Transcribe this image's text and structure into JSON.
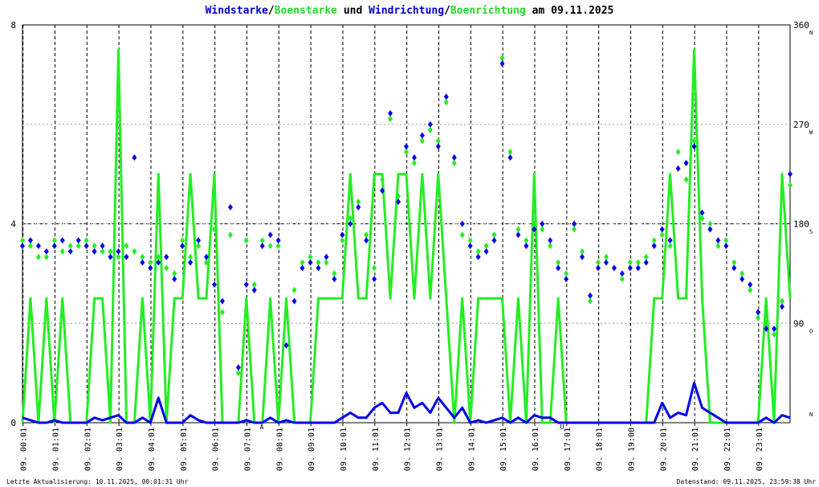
{
  "chart_data": {
    "type": "line",
    "title_parts": [
      {
        "text": "Windstarke",
        "color": "#0000cc"
      },
      {
        "text": "/",
        "color": "#000000"
      },
      {
        "text": "Boenstarke",
        "color": "#22dd22"
      },
      {
        "text": " und ",
        "color": "#000000"
      },
      {
        "text": "Windrichtung",
        "color": "#0000cc"
      },
      {
        "text": "/",
        "color": "#000000"
      },
      {
        "text": "Boenrichtung",
        "color": "#22dd22"
      },
      {
        "text": " am 09.11.2025",
        "color": "#000000"
      }
    ],
    "xlim": [
      0,
      1440
    ],
    "xticks": [
      {
        "value": 1,
        "label": "09. 00:01"
      },
      {
        "value": 61,
        "label": "09. 01:01"
      },
      {
        "value": 121,
        "label": "09. 02:01"
      },
      {
        "value": 181,
        "label": "09. 03:01"
      },
      {
        "value": 241,
        "label": "09. 04:01"
      },
      {
        "value": 301,
        "label": "09. 05:01"
      },
      {
        "value": 361,
        "label": "09. 06:01"
      },
      {
        "value": 421,
        "label": "09. 07:01"
      },
      {
        "value": 481,
        "label": "09. 08:01"
      },
      {
        "value": 541,
        "label": "09. 09:01"
      },
      {
        "value": 601,
        "label": "09. 10:01"
      },
      {
        "value": 661,
        "label": "09. 11:01"
      },
      {
        "value": 721,
        "label": "09. 12:01"
      },
      {
        "value": 781,
        "label": "09. 13:01"
      },
      {
        "value": 841,
        "label": "09. 14:01"
      },
      {
        "value": 901,
        "label": "09. 15:01"
      },
      {
        "value": 961,
        "label": "09. 16:01"
      },
      {
        "value": 1021,
        "label": "09. 17:01"
      },
      {
        "value": 1081,
        "label": "09. 18:01"
      },
      {
        "value": 1141,
        "label": "09. 19:00"
      },
      {
        "value": 1201,
        "label": "09. 20:01"
      },
      {
        "value": 1261,
        "label": "09. 21:01"
      },
      {
        "value": 1321,
        "label": "09. 22:01"
      },
      {
        "value": 1381,
        "label": "09. 23:01"
      }
    ],
    "ylim": [
      0,
      8
    ],
    "yticks": [
      0,
      4,
      8
    ],
    "y2lim": [
      0,
      360
    ],
    "y2ticks": [
      90,
      180,
      270,
      360
    ],
    "compass": [
      {
        "value": 360,
        "label": "N"
      },
      {
        "value": 270,
        "label": "W"
      },
      {
        "value": 180,
        "label": "S"
      },
      {
        "value": 90,
        "label": "O"
      },
      {
        "value": 0,
        "label": "N"
      }
    ],
    "annotations": [
      {
        "text": "A",
        "x": 449,
        "color": "#cc0000"
      },
      {
        "text": "U",
        "x": 1012,
        "color": "#cc0000"
      }
    ],
    "x": [
      0,
      15,
      30,
      45,
      60,
      75,
      90,
      105,
      120,
      135,
      150,
      165,
      180,
      195,
      210,
      225,
      240,
      255,
      270,
      285,
      300,
      315,
      330,
      345,
      360,
      375,
      390,
      405,
      420,
      435,
      450,
      465,
      480,
      495,
      510,
      525,
      540,
      555,
      570,
      585,
      600,
      615,
      630,
      645,
      660,
      675,
      690,
      705,
      720,
      735,
      750,
      765,
      780,
      795,
      810,
      825,
      840,
      855,
      870,
      885,
      900,
      915,
      930,
      945,
      960,
      975,
      990,
      1005,
      1020,
      1035,
      1050,
      1065,
      1080,
      1095,
      1110,
      1125,
      1140,
      1155,
      1170,
      1185,
      1200,
      1215,
      1230,
      1245,
      1260,
      1275,
      1290,
      1305,
      1320,
      1335,
      1350,
      1365,
      1380,
      1395,
      1410,
      1425,
      1440
    ],
    "series": [
      {
        "name": "Boenstarke",
        "color": "#22ee22",
        "kind": "line",
        "axis": "y",
        "values": [
          0,
          2.5,
          0,
          2.5,
          0,
          2.5,
          0,
          0,
          0,
          2.5,
          2.5,
          0,
          7.5,
          0,
          0,
          2.5,
          0,
          5,
          0,
          2.5,
          2.5,
          5,
          2.5,
          2.5,
          5,
          0,
          0,
          0,
          2.5,
          0,
          0,
          2.5,
          0,
          2.5,
          0,
          0,
          0,
          2.5,
          2.5,
          2.5,
          2.5,
          5,
          2.5,
          2.5,
          5,
          5,
          2.5,
          5,
          5,
          2.5,
          5,
          2.5,
          5,
          2.5,
          0,
          2.5,
          0,
          2.5,
          2.5,
          2.5,
          2.5,
          0,
          2.5,
          0,
          5,
          0,
          0,
          2.5,
          0,
          0,
          0,
          0,
          0,
          0,
          0,
          0,
          0,
          0,
          0,
          2.5,
          2.5,
          5,
          2.5,
          2.5,
          7.5,
          2.5,
          0,
          0,
          0,
          0,
          0,
          0,
          0,
          2.5,
          0,
          5,
          2.5
        ]
      },
      {
        "name": "Windstarke",
        "color": "#0000ee",
        "kind": "line",
        "axis": "y",
        "values": [
          0.1,
          0.05,
          0,
          0,
          0.05,
          0,
          0,
          0,
          0,
          0.1,
          0.05,
          0.1,
          0.15,
          0,
          0,
          0.1,
          0,
          0.5,
          0,
          0,
          0,
          0.15,
          0.05,
          0,
          0,
          0,
          0,
          0,
          0.05,
          0,
          0,
          0.1,
          0,
          0.05,
          0,
          0,
          0,
          0,
          0,
          0,
          0.1,
          0.2,
          0.1,
          0.1,
          0.3,
          0.4,
          0.2,
          0.2,
          0.6,
          0.3,
          0.4,
          0.2,
          0.5,
          0.3,
          0.1,
          0.3,
          0,
          0.05,
          0,
          0.05,
          0.1,
          0,
          0.1,
          0,
          0.15,
          0.1,
          0.1,
          0,
          0,
          0,
          0,
          0,
          0,
          0,
          0,
          0,
          0,
          0,
          0,
          0,
          0.4,
          0.1,
          0.2,
          0.15,
          0.8,
          0.3,
          0.2,
          0.1,
          0,
          0,
          0,
          0,
          0,
          0.1,
          0,
          0.15,
          0.1
        ]
      },
      {
        "name": "Boenrichtung",
        "color": "#22ee22",
        "kind": "scatter",
        "axis": "y2",
        "values": [
          165,
          160,
          150,
          150,
          165,
          155,
          160,
          160,
          165,
          160,
          155,
          155,
          150,
          160,
          155,
          150,
          145,
          150,
          140,
          135,
          165,
          150,
          160,
          145,
          175,
          100,
          170,
          45,
          165,
          125,
          165,
          160,
          160,
          100,
          120,
          145,
          150,
          145,
          145,
          135,
          165,
          185,
          200,
          170,
          140,
          220,
          275,
          205,
          245,
          235,
          255,
          265,
          255,
          290,
          235,
          170,
          165,
          155,
          160,
          170,
          330,
          245,
          175,
          165,
          180,
          175,
          160,
          145,
          135,
          175,
          155,
          110,
          145,
          150,
          140,
          130,
          145,
          145,
          150,
          165,
          170,
          160,
          245,
          220,
          255,
          185,
          180,
          160,
          165,
          145,
          135,
          120,
          95,
          90,
          80,
          110,
          215
        ]
      },
      {
        "name": "Windrichtung",
        "color": "#0000ee",
        "kind": "scatter",
        "axis": "y2",
        "values": [
          160,
          165,
          160,
          155,
          160,
          165,
          155,
          165,
          160,
          155,
          160,
          150,
          155,
          150,
          240,
          145,
          140,
          145,
          150,
          130,
          160,
          145,
          165,
          150,
          125,
          110,
          195,
          50,
          125,
          120,
          160,
          170,
          165,
          70,
          110,
          140,
          145,
          140,
          150,
          130,
          170,
          180,
          195,
          165,
          130,
          210,
          280,
          200,
          250,
          240,
          260,
          270,
          250,
          295,
          240,
          180,
          160,
          150,
          155,
          165,
          325,
          240,
          170,
          160,
          175,
          180,
          165,
          140,
          130,
          180,
          150,
          115,
          140,
          145,
          140,
          135,
          140,
          140,
          145,
          160,
          175,
          165,
          230,
          235,
          250,
          190,
          175,
          165,
          160,
          140,
          130,
          125,
          100,
          85,
          85,
          105,
          225
        ]
      }
    ],
    "footer_left": "Letzte Aktualisierung: 10.11.2025, 00:01:31 Uhr",
    "footer_right": "Datenstand: 09.11.2025, 23:59:38 Uhr"
  }
}
